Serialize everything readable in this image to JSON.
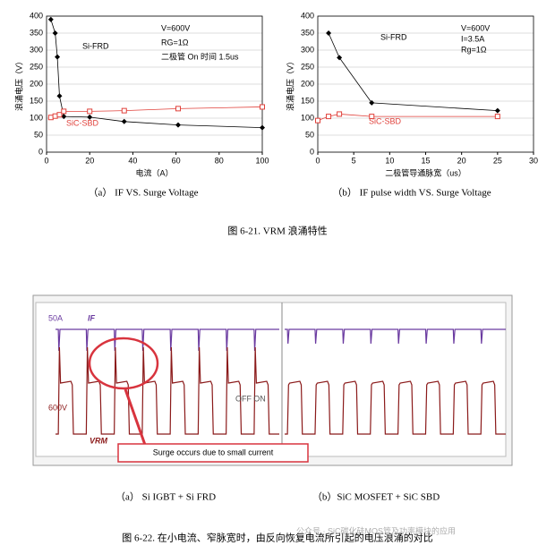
{
  "chart_data": [
    {
      "type": "line",
      "xlabel": "电流（A）",
      "ylabel": "浪涌电压（V）",
      "xlim": [
        0,
        100
      ],
      "xticks": [
        0,
        20,
        40,
        60,
        80,
        100
      ],
      "ylim": [
        0,
        400
      ],
      "yticks": [
        0,
        50,
        100,
        150,
        200,
        250,
        300,
        350,
        400
      ],
      "annotations": [
        "V=600V",
        "RG=1Ω",
        "二极管 On 时间 1.5us"
      ],
      "series": [
        {
          "name": "Si-FRD",
          "color": "#000000",
          "marker": "diamond",
          "x": [
            2,
            4,
            5,
            6,
            8,
            20,
            36,
            61,
            100
          ],
          "values": [
            390,
            350,
            280,
            165,
            105,
            103,
            90,
            80,
            72
          ]
        },
        {
          "name": "SiC-SBD",
          "color": "#e0403a",
          "marker": "square",
          "x": [
            2,
            4,
            6,
            8,
            20,
            36,
            61,
            100
          ],
          "values": [
            102,
            106,
            110,
            120,
            120,
            122,
            128,
            133
          ]
        }
      ]
    },
    {
      "type": "line",
      "xlabel": "二极管导通脉宽（us）",
      "ylabel": "浪涌电压（V）",
      "xlim": [
        0,
        30
      ],
      "xticks": [
        0,
        5,
        10,
        15,
        20,
        25,
        30
      ],
      "ylim": [
        0,
        400
      ],
      "yticks": [
        0,
        50,
        100,
        150,
        200,
        250,
        300,
        350,
        400
      ],
      "annotations": [
        "V=600V",
        "I=3.5A",
        "Rg=1Ω"
      ],
      "series": [
        {
          "name": "Si-FRD",
          "color": "#000000",
          "marker": "diamond",
          "x": [
            1.5,
            3,
            7.5,
            25
          ],
          "values": [
            350,
            278,
            145,
            122
          ]
        },
        {
          "name": "SiC-SBD",
          "color": "#e0403a",
          "marker": "square",
          "x": [
            0,
            1.5,
            3,
            7.5,
            25
          ],
          "values": [
            93,
            105,
            112,
            105,
            105
          ]
        }
      ]
    }
  ],
  "captions": {
    "a": "（a） IF VS. Surge Voltage",
    "b": "（b） IF pulse width VS. Surge Voltage",
    "fig1": "图 6-21. VRM 浪涌特性",
    "c": "（a） Si IGBT + Si FRD",
    "d": "（b）SiC MOSFET + SiC SBD",
    "fig2": "图 6-22. 在小电流、窄脉宽时，由反向恢复电流所引起的电压浪涌的对比"
  },
  "scope": {
    "current_scale": "50A",
    "current_name": "IF",
    "voltage_scale": "600V",
    "voltage_name": "VRM",
    "callout": "Surge occurs due to small current",
    "off": "OFF",
    "on": "ON"
  },
  "watermark": "公众号 · SiC碳化硅MOS管及功率模块的应用"
}
